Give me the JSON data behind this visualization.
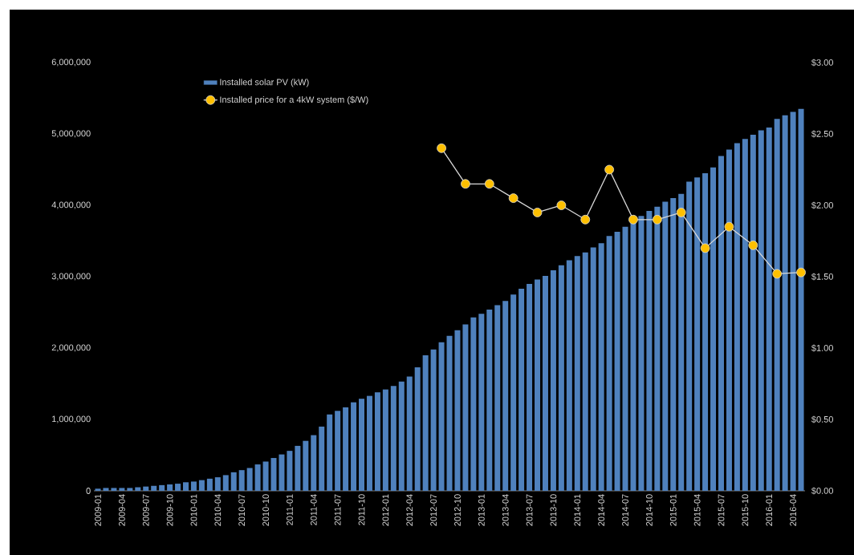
{
  "chart_data": {
    "type": "bar",
    "categories": [
      "2009-01",
      null,
      null,
      "2009-04",
      null,
      null,
      "2009-07",
      null,
      null,
      "2009-10",
      null,
      null,
      "2010-01",
      null,
      null,
      "2010-04",
      null,
      null,
      "2010-07",
      null,
      null,
      "2010-10",
      null,
      null,
      "2011-01",
      null,
      null,
      "2011-04",
      null,
      null,
      "2011-07",
      null,
      null,
      "2011-10",
      null,
      null,
      "2012-01",
      null,
      null,
      "2012-04",
      null,
      null,
      "2012-07",
      null,
      null,
      "2012-10",
      null,
      null,
      "2013-01",
      null,
      null,
      "2013-04",
      null,
      null,
      "2013-07",
      null,
      null,
      "2013-10",
      null,
      null,
      "2014-01",
      null,
      null,
      "2014-04",
      null,
      null,
      "2014-07",
      null,
      null,
      "2014-10",
      null,
      null,
      "2015-01",
      null,
      null,
      "2015-04",
      null,
      null,
      "2015-07",
      null,
      null,
      "2015-10",
      null,
      null,
      "2016-01",
      null,
      null,
      "2016-04",
      null
    ],
    "series": [
      {
        "name": "Installed solar PV (kW)",
        "color": "#4f81bd",
        "values": [
          30000,
          40000,
          40000,
          40000,
          40000,
          50000,
          60000,
          70000,
          80000,
          90000,
          100000,
          120000,
          130000,
          150000,
          170000,
          190000,
          220000,
          260000,
          290000,
          320000,
          370000,
          410000,
          460000,
          510000,
          560000,
          630000,
          700000,
          780000,
          900000,
          1070000,
          1120000,
          1170000,
          1240000,
          1290000,
          1330000,
          1380000,
          1420000,
          1470000,
          1530000,
          1600000,
          1730000,
          1900000,
          1980000,
          2080000,
          2170000,
          2250000,
          2330000,
          2430000,
          2480000,
          2540000,
          2600000,
          2660000,
          2750000,
          2830000,
          2900000,
          2960000,
          3010000,
          3090000,
          3160000,
          3230000,
          3290000,
          3340000,
          3410000,
          3470000,
          3570000,
          3630000,
          3700000,
          3770000,
          3850000,
          3920000,
          3980000,
          4050000,
          4100000,
          4160000,
          4330000,
          4390000,
          4450000,
          4530000,
          4690000,
          4780000,
          4870000,
          4930000,
          4990000,
          5050000,
          5090000,
          5210000,
          5260000,
          5310000,
          5350000
        ]
      },
      {
        "name": "Installed price for a 4kW system ($/W)",
        "type": "line",
        "axis": "y2",
        "color": "#ffc000",
        "marker": "circle",
        "values": [
          null,
          null,
          null,
          null,
          null,
          null,
          null,
          null,
          null,
          null,
          null,
          null,
          null,
          null,
          null,
          null,
          null,
          null,
          null,
          null,
          null,
          null,
          null,
          null,
          null,
          null,
          null,
          null,
          null,
          null,
          null,
          null,
          null,
          null,
          null,
          null,
          null,
          null,
          null,
          null,
          null,
          null,
          null,
          2.4,
          null,
          null,
          2.15,
          null,
          null,
          2.15,
          null,
          null,
          2.05,
          null,
          null,
          1.95,
          null,
          null,
          2.0,
          null,
          null,
          1.9,
          null,
          null,
          2.25,
          null,
          null,
          1.9,
          null,
          null,
          1.9,
          null,
          null,
          1.95,
          null,
          null,
          1.7,
          null,
          null,
          1.85,
          null,
          null,
          1.72,
          null,
          null,
          1.52,
          null,
          null,
          1.53
        ]
      }
    ],
    "ylim": [
      0,
      6000000
    ],
    "yticks": [
      0,
      {
        "value": 1000000,
        "label": "1,000,000"
      },
      {
        "value": 2000000,
        "label": "2,000,000"
      },
      {
        "value": 3000000,
        "label": "3,000,000"
      },
      {
        "value": 4000000,
        "label": "4,000,000"
      },
      {
        "value": 5000000,
        "label": "5,000,000"
      },
      {
        "value": 6000000,
        "label": "6,000,000"
      }
    ],
    "y2lim": [
      0,
      3
    ],
    "y2ticks": [
      {
        "value": 0,
        "label": "$0.00"
      },
      {
        "value": 0.5,
        "label": "$0.50"
      },
      {
        "value": 1,
        "label": "$1.00"
      },
      {
        "value": 1.5,
        "label": "$1.50"
      },
      {
        "value": 2,
        "label": "$2.00"
      },
      {
        "value": 2.5,
        "label": "$2.50"
      },
      {
        "value": 3,
        "label": "$3.00"
      }
    ],
    "legend": "top left",
    "grid": false
  }
}
